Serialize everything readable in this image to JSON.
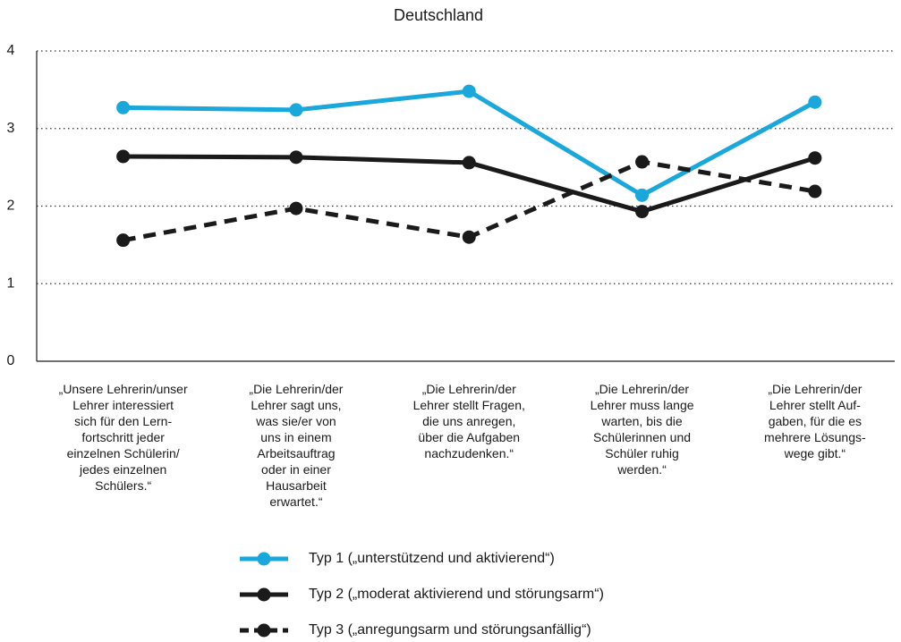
{
  "chart_data": {
    "type": "line",
    "title": "Deutschland",
    "categories": [
      [
        "„Unsere Lehrerin/unser",
        "Lehrer interessiert",
        "sich für den Lern-",
        "fortschritt jeder",
        "einzelnen Schülerin/",
        "jedes einzelnen",
        "Schülers.“"
      ],
      [
        "„Die Lehrerin/der",
        "Lehrer sagt uns,",
        "was sie/er von",
        "uns in einem",
        "Arbeitsauftrag",
        "oder in einer",
        "Hausarbeit",
        "erwartet.“"
      ],
      [
        "„Die Lehrerin/der",
        "Lehrer stellt Fragen,",
        "die uns anregen,",
        "über die Aufgaben",
        "nachzudenken.“"
      ],
      [
        "„Die Lehrerin/der",
        "Lehrer muss lange",
        "warten, bis die",
        "Schülerinnen und",
        "Schüler ruhig",
        "werden.“"
      ],
      [
        "„Die Lehrerin/der",
        "Lehrer stellt Auf-",
        "gaben, für die es",
        "mehrere Lösungs-",
        "wege gibt.“"
      ]
    ],
    "series": [
      {
        "name": "Typ 1 („unterstützend und aktivierend“)",
        "color": "#1aa7dc",
        "dashed": false,
        "values": [
          3.27,
          3.24,
          3.48,
          2.14,
          3.34
        ]
      },
      {
        "name": "Typ 2 („moderat aktivierend und störungsarm“)",
        "color": "#1a1a1a",
        "dashed": false,
        "values": [
          2.64,
          2.63,
          2.56,
          1.93,
          2.62
        ]
      },
      {
        "name": "Typ 3 („anregungsarm und störungsanfällig“)",
        "color": "#1a1a1a",
        "dashed": true,
        "values": [
          1.56,
          1.97,
          1.6,
          2.57,
          2.19
        ]
      }
    ],
    "ylim": [
      0,
      4
    ],
    "yticks": [
      0,
      1,
      2,
      3,
      4
    ],
    "grid": true
  }
}
